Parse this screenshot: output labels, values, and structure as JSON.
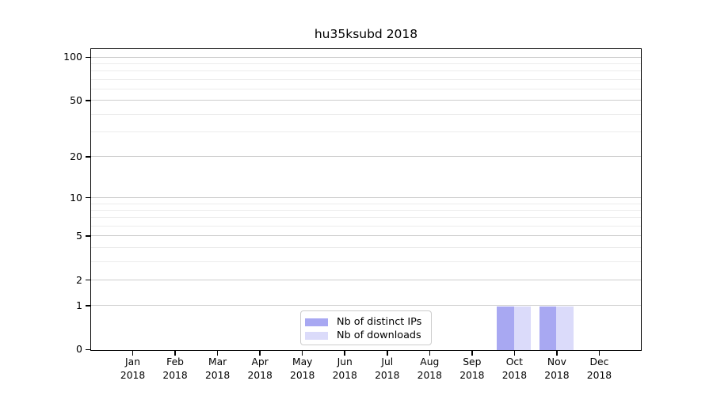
{
  "chart_data": {
    "type": "bar",
    "title": "hu35ksubd 2018",
    "categories": [
      "Jan 2018",
      "Feb 2018",
      "Mar 2018",
      "Apr 2018",
      "May 2018",
      "Jun 2018",
      "Jul 2018",
      "Aug 2018",
      "Sep 2018",
      "Oct 2018",
      "Nov 2018",
      "Dec 2018"
    ],
    "month_labels": [
      "Jan",
      "Feb",
      "Mar",
      "Apr",
      "May",
      "Jun",
      "Jul",
      "Aug",
      "Sep",
      "Oct",
      "Nov",
      "Dec"
    ],
    "year_label": "2018",
    "series": [
      {
        "name": "Nb of distinct IPs",
        "key": "distinct-ips",
        "color": "#a8a8f2",
        "values": [
          0,
          0,
          0,
          0,
          0,
          0,
          0,
          0,
          0,
          1,
          1,
          0
        ]
      },
      {
        "name": "Nb of downloads",
        "key": "downloads",
        "color": "#dbdbfa",
        "values": [
          0,
          0,
          0,
          0,
          0,
          0,
          0,
          0,
          0,
          1,
          1,
          0
        ]
      }
    ],
    "yscale": "log1p",
    "ylim": [
      0,
      113
    ],
    "y_major_ticks": [
      0,
      1,
      2,
      5,
      10,
      20,
      50,
      100
    ],
    "y_minor_ticks": [
      3,
      4,
      6,
      7,
      8,
      9,
      30,
      40,
      60,
      70,
      80,
      90
    ],
    "grid": "horizontal-only",
    "legend_position": "lower-center"
  },
  "legend": {
    "items": [
      {
        "label": "Nb of distinct IPs",
        "color": "#a8a8f2"
      },
      {
        "label": "Nb of downloads",
        "color": "#dbdbfa"
      }
    ]
  },
  "colors": {
    "major_grid": "#cdcdcd",
    "minor_grid": "#ececec",
    "spine": "#000000",
    "background": "#ffffff",
    "bar_distinct_ips": "#a8a8f2",
    "bar_downloads": "#dbdbfa"
  }
}
